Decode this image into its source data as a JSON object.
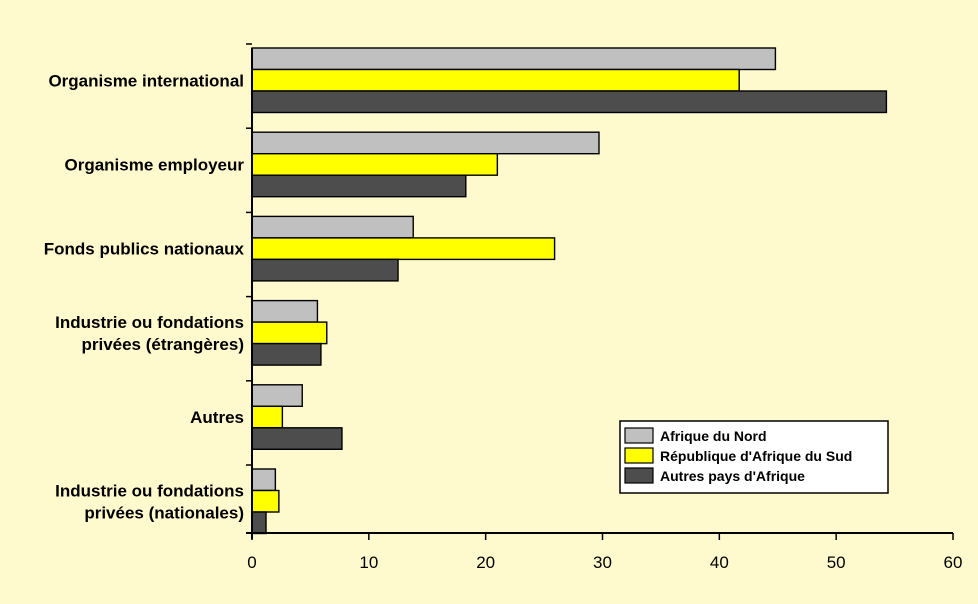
{
  "chart_data": {
    "type": "bar",
    "orientation": "horizontal",
    "categories": [
      [
        "Organisme international"
      ],
      [
        "Organisme employeur"
      ],
      [
        "Fonds publics nationaux"
      ],
      [
        "Industrie ou fondations",
        "privées (étrangères)"
      ],
      [
        "Autres"
      ],
      [
        "Industrie ou fondations",
        "privées (nationales)"
      ]
    ],
    "series": [
      {
        "name": "Afrique du Nord",
        "color": "#c0c0c0",
        "values": [
          44.8,
          29.7,
          13.8,
          5.6,
          4.3,
          2.0
        ]
      },
      {
        "name": "République d'Afrique du Sud",
        "color": "#ffff00",
        "values": [
          41.7,
          21.0,
          25.9,
          6.4,
          2.6,
          2.3
        ]
      },
      {
        "name": "Autres pays d'Afrique",
        "color": "#4d4d4d",
        "values": [
          54.3,
          18.3,
          12.5,
          5.9,
          7.7,
          1.2
        ]
      }
    ],
    "xlim": [
      0,
      60
    ],
    "xticks": [
      "0",
      "10",
      "20",
      "30",
      "40",
      "50",
      "60"
    ],
    "legend_position": "bottom-right",
    "grid": false
  }
}
